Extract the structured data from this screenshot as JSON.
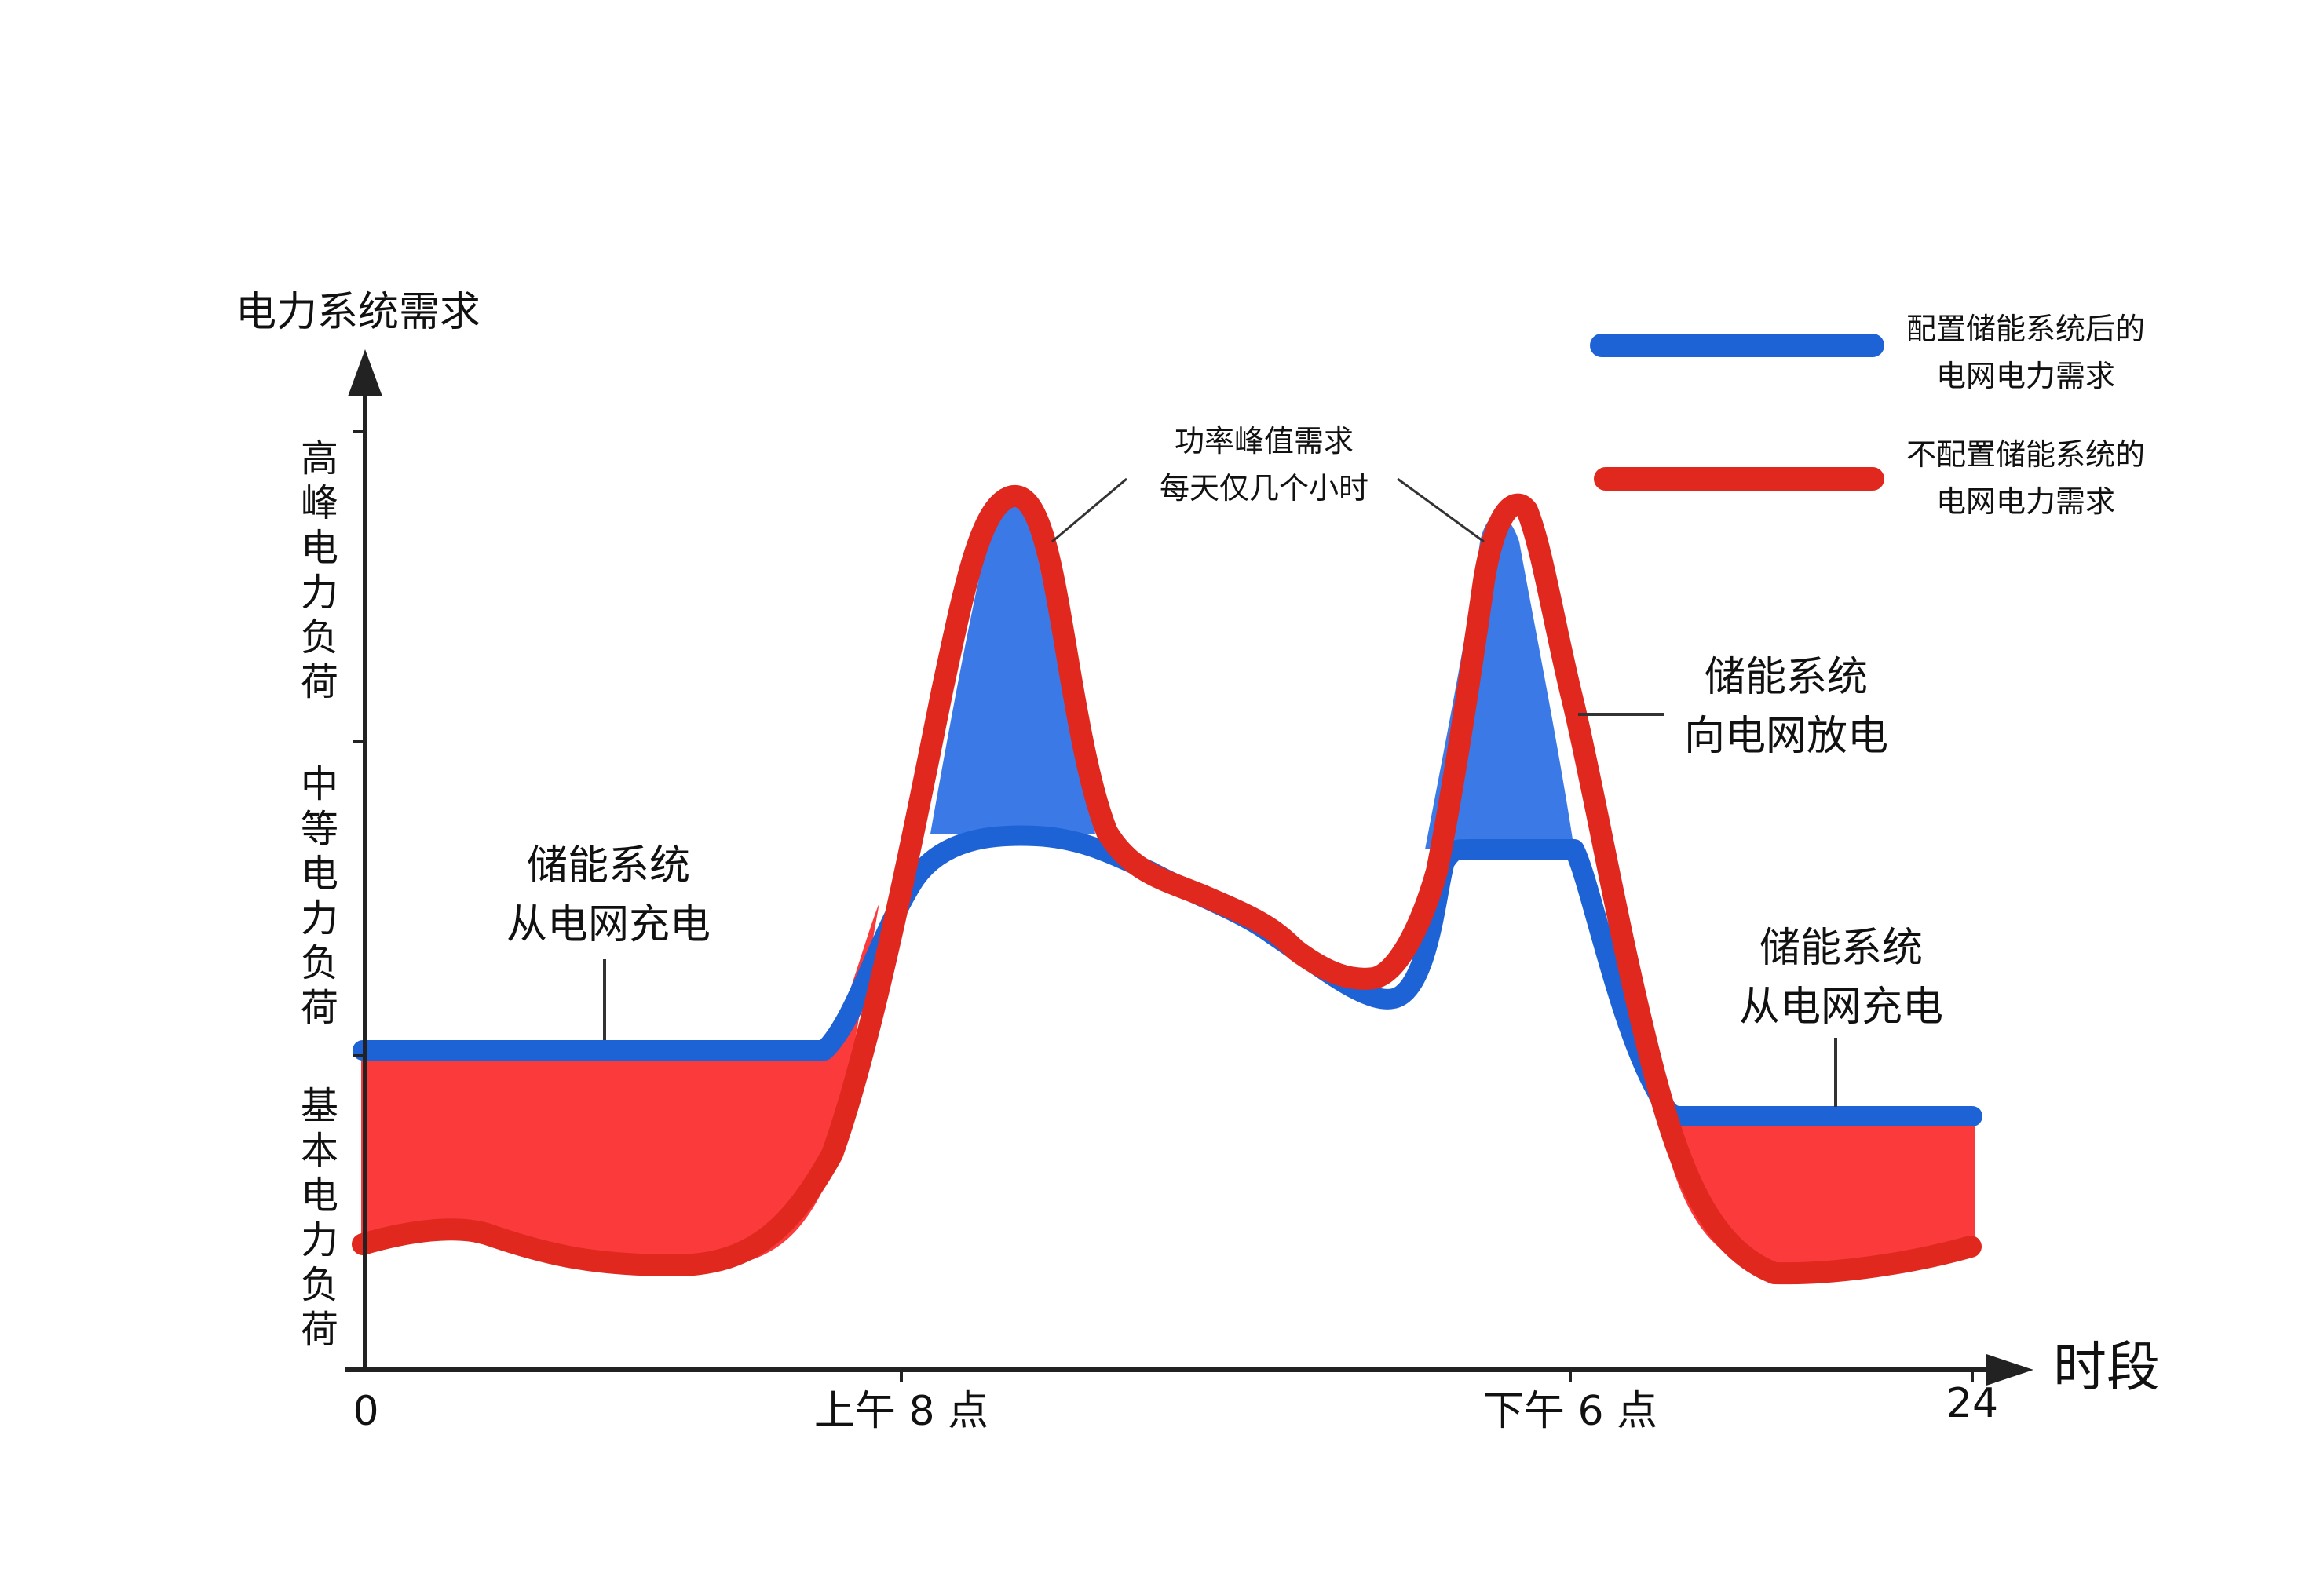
{
  "axis": {
    "y_title": "电力系统需求",
    "x_title": "时段",
    "y_bands": [
      "高峰电力负荷",
      "中等电力负荷",
      "基本电力负荷"
    ],
    "x_ticks": [
      "0",
      "上午 8 点",
      "下午 6 点",
      "24"
    ]
  },
  "legend": [
    {
      "line1": "配置储能系统后的",
      "line2": "电网电力需求",
      "color": "#1e63d6"
    },
    {
      "line1": "不配置储能系统的",
      "line2": "电网电力需求",
      "color": "#e0281e"
    }
  ],
  "annotations": {
    "peak": {
      "line1": "功率峰值需求",
      "line2": "每天仅几个小时"
    },
    "charge_left": {
      "line1": "储能系统",
      "line2": "从电网充电"
    },
    "discharge": {
      "line1": "储能系统",
      "line2": "向电网放电"
    },
    "charge_right": {
      "line1": "储能系统",
      "line2": "从电网充电"
    }
  },
  "colors": {
    "blue": "#1e63d6",
    "blue_fill": "#3b7ae6",
    "red": "#e0281e",
    "red_fill": "#fb3a3c",
    "axis": "#222222"
  }
}
